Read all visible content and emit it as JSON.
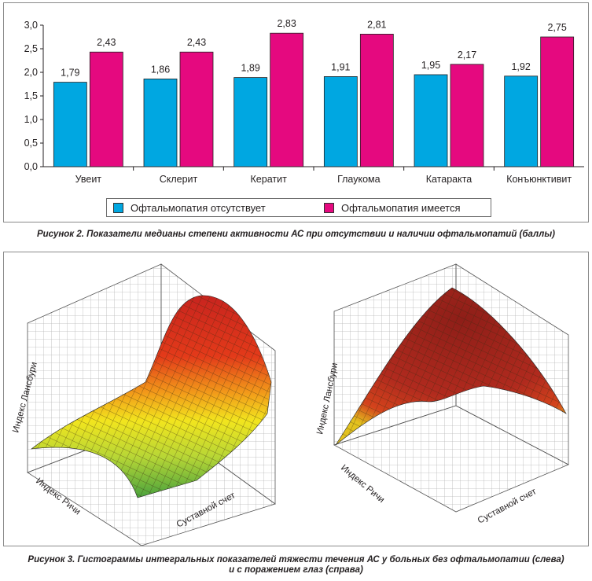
{
  "figure2": {
    "caption": "Рисунок 2. Показатели медианы степени активности АС при отсутствии и наличии офтальмопатий (баллы)"
  },
  "chart_data": [
    {
      "type": "bar",
      "categories": [
        "Увеит",
        "Склерит",
        "Кератит",
        "Глаукома",
        "Катаракта",
        "Конъюнктивит"
      ],
      "series": [
        {
          "name": "Офтальмопатия отсутствует",
          "color": "#00a7e1",
          "values": [
            1.79,
            1.86,
            1.89,
            1.91,
            1.95,
            1.92
          ],
          "labels": [
            "1,79",
            "1,86",
            "1,89",
            "1,91",
            "1,95",
            "1,92"
          ]
        },
        {
          "name": "Офтальмопатия имеется",
          "color": "#e5097f",
          "values": [
            2.43,
            2.43,
            2.83,
            2.81,
            2.17,
            2.75
          ],
          "labels": [
            "2,43",
            "2,43",
            "2,83",
            "2,81",
            "2,17",
            "2,75"
          ]
        }
      ],
      "ylim": [
        0,
        3.0
      ],
      "yticks": [
        0,
        0.5,
        1.0,
        1.5,
        2.0,
        2.5,
        3.0
      ],
      "ytick_labels": [
        "0,0",
        "0,5",
        "1,0",
        "1,5",
        "2,0",
        "2,5",
        "3,0"
      ],
      "grid": false,
      "legend": "bottom"
    }
  ],
  "figure3": {
    "caption_line1": "Рисунок 3. Гистограммы интегральных показателей тяжести течения АС у больных без офтальмопатии (слева)",
    "caption_line2": "и с поражением глаз (справа)",
    "left_plot": {
      "z_label": "Индекс Лансбури",
      "x_label": "Индекс Ричи",
      "y_label": "Суставной счет"
    },
    "right_plot": {
      "z_label": "Индекс Лансбури",
      "x_label": "Индекс Ричи",
      "y_label": "Суставной счет"
    }
  }
}
